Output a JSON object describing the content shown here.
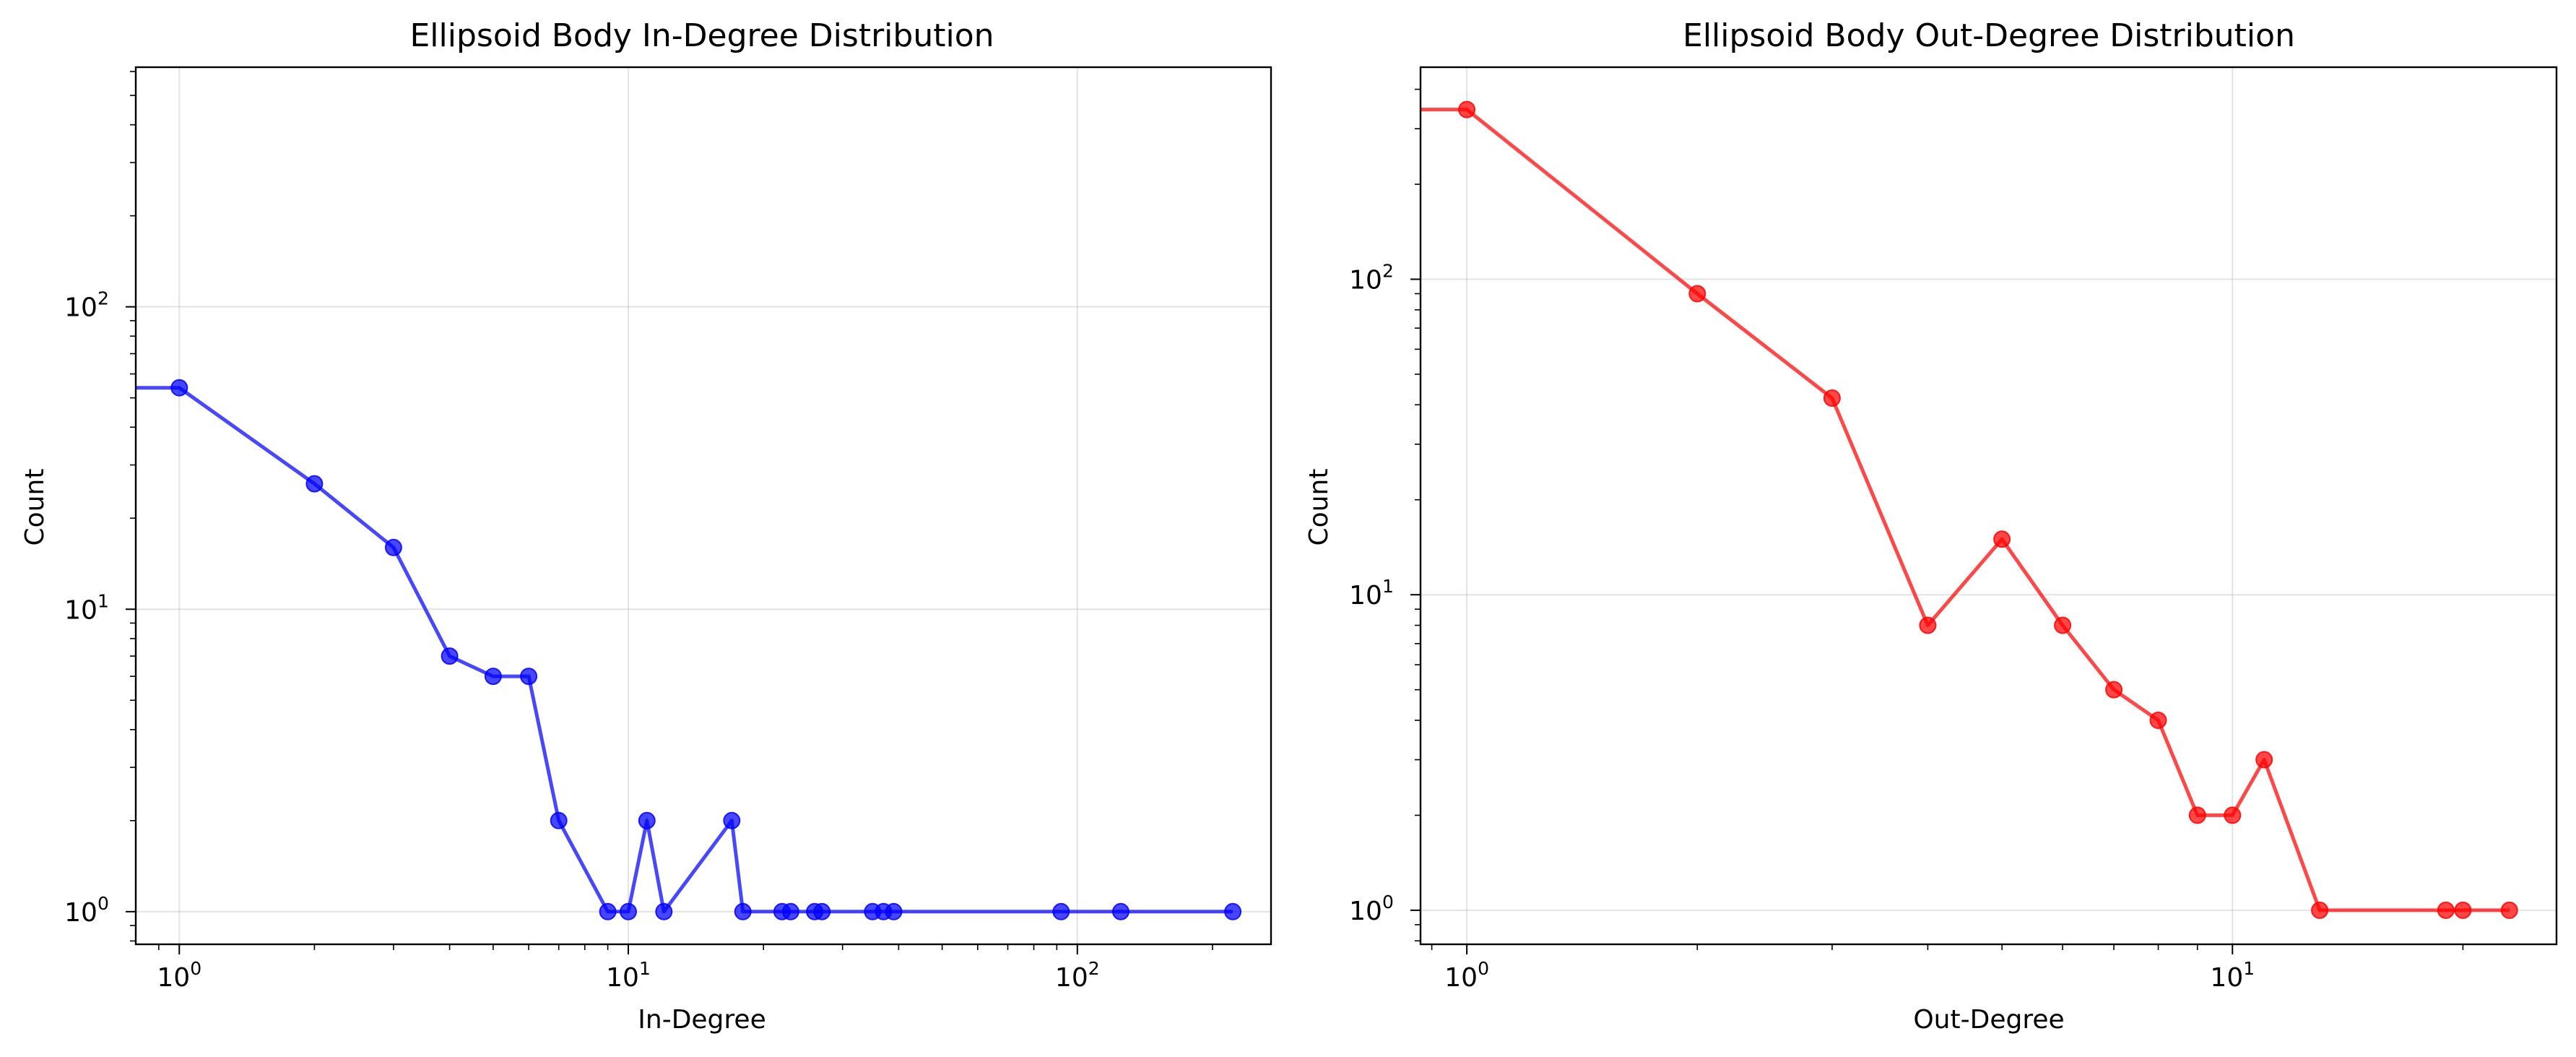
{
  "chart_data": [
    {
      "type": "line",
      "title": "Ellipsoid Body In-Degree Distribution",
      "xlabel": "In-Degree",
      "ylabel": "Count",
      "xscale": "log",
      "yscale": "log",
      "xlim": [
        0.8,
        270
      ],
      "ylim": [
        0.78,
        620
      ],
      "xticks": [
        {
          "value": 1,
          "base": "10",
          "exp": "0"
        },
        {
          "value": 10,
          "base": "10",
          "exp": "1"
        },
        {
          "value": 100,
          "base": "10",
          "exp": "2"
        }
      ],
      "yticks": [
        {
          "value": 1,
          "base": "10",
          "exp": "0"
        },
        {
          "value": 10,
          "base": "10",
          "exp": "1"
        },
        {
          "value": 100,
          "base": "10",
          "exp": "2"
        }
      ],
      "grid": true,
      "legend": "none",
      "series": [
        {
          "color": "#0000ff",
          "marker": "circle",
          "x": [
            0,
            1,
            2,
            3,
            4,
            5,
            6,
            7,
            9,
            10,
            11,
            12,
            17,
            18,
            22,
            23,
            26,
            27,
            35,
            37,
            39,
            92,
            125,
            222
          ],
          "y": [
            54,
            54,
            26,
            16,
            7,
            6,
            6,
            2,
            1,
            1,
            2,
            1,
            2,
            1,
            1,
            1,
            1,
            1,
            1,
            1,
            1,
            1,
            1,
            1
          ]
        }
      ]
    },
    {
      "type": "line",
      "title": "Ellipsoid Body Out-Degree Distribution",
      "xlabel": "Out-Degree",
      "ylabel": "Count",
      "xscale": "log",
      "yscale": "log",
      "xlim": [
        0.87,
        26.5
      ],
      "ylim": [
        0.78,
        470
      ],
      "xticks": [
        {
          "value": 1,
          "base": "10",
          "exp": "0"
        },
        {
          "value": 10,
          "base": "10",
          "exp": "1"
        }
      ],
      "yticks": [
        {
          "value": 1,
          "base": "10",
          "exp": "0"
        },
        {
          "value": 10,
          "base": "10",
          "exp": "1"
        },
        {
          "value": 100,
          "base": "10",
          "exp": "2"
        }
      ],
      "grid": true,
      "legend": "none",
      "series": [
        {
          "color": "#ff0000",
          "marker": "circle",
          "x": [
            0,
            1,
            2,
            3,
            4,
            5,
            6,
            7,
            8,
            9,
            10,
            11,
            13,
            19,
            20,
            23
          ],
          "y": [
            345,
            345,
            90,
            42,
            8,
            15,
            8,
            5,
            4,
            2,
            2,
            3,
            1,
            1,
            1,
            1
          ]
        }
      ]
    }
  ]
}
